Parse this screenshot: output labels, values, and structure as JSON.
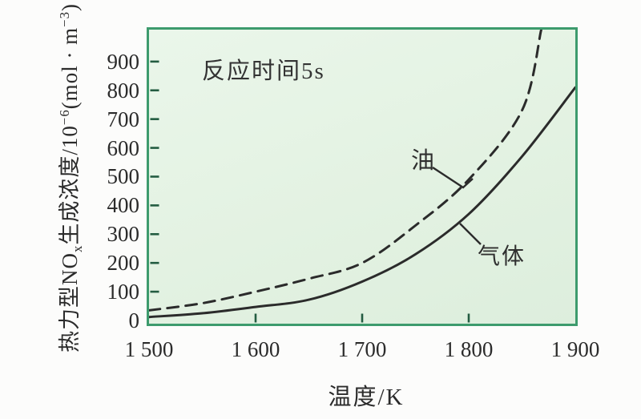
{
  "figure": {
    "background": "#fcfcfb",
    "plot_background": "#e4f2e3",
    "border_color": "#3d9b6d",
    "curve_color": "#2b2b2b",
    "tick_color": "#235c41",
    "text_color": "#2d2d2d"
  },
  "chart_data": {
    "type": "line",
    "title": "",
    "annotation": "反应时间5s",
    "xlabel": "温度/K",
    "ylabel": "热力型NOx生成浓度/10⁻⁶(mol·m⁻³)",
    "ylabel_parts": {
      "p1": "热力型NO",
      "sub1": "x",
      "p2": "生成浓度/10",
      "sup1": "−6",
      "p3": "(mol · m",
      "sup2": "−3",
      "p4": ")"
    },
    "xlim": [
      1500,
      1900
    ],
    "ylim": [
      0,
      1010
    ],
    "x_ticks": [
      1500,
      1600,
      1700,
      1800,
      1900
    ],
    "x_tick_labels": [
      "1 500",
      "1 600",
      "1 700",
      "1 800",
      "1 900"
    ],
    "x_tick_marks": [
      1600,
      1700,
      1800
    ],
    "y_ticks": [
      0,
      100,
      200,
      300,
      400,
      500,
      600,
      700,
      800,
      900
    ],
    "grid": false,
    "legend_position": "inline-annotations",
    "series": [
      {
        "name": "油",
        "line_style": "dashed",
        "x": [
          1500,
          1550,
          1600,
          1650,
          1700,
          1750,
          1800,
          1850,
          1868
        ],
        "values": [
          35,
          60,
          100,
          145,
          200,
          330,
          490,
          730,
          1010
        ]
      },
      {
        "name": "气体",
        "line_style": "solid",
        "x": [
          1500,
          1550,
          1600,
          1650,
          1700,
          1750,
          1800,
          1850,
          1900
        ],
        "values": [
          12,
          25,
          47,
          72,
          135,
          230,
          370,
          570,
          810
        ]
      }
    ]
  }
}
